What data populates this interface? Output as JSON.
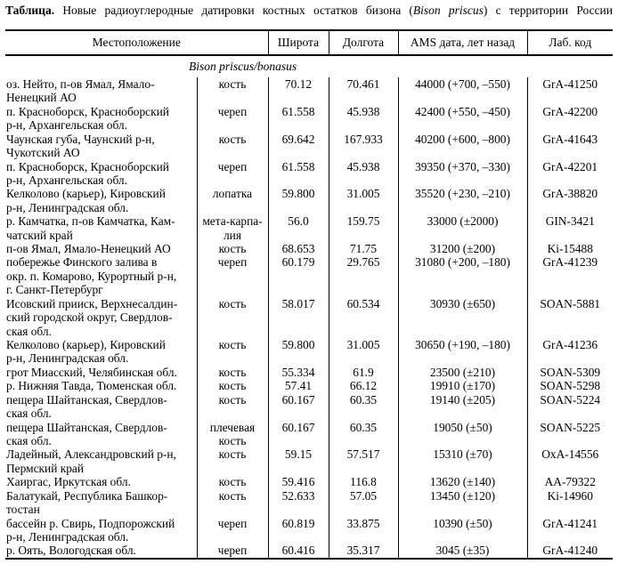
{
  "title": {
    "label": "Таблица.",
    "text_before_species": "Новые радиоуглеродные датировки костных остатков бизона (",
    "species": "Bison priscus",
    "text_after_species": ") с территории России"
  },
  "table": {
    "headers": {
      "location": "Местоположение",
      "latitude": "Широта",
      "longitude": "Долгота",
      "ams_date": "AMS дата, лет назад",
      "lab_code": "Лаб. код"
    },
    "section": "Bison priscus/bonasus",
    "rows": [
      {
        "location": "оз. Нейто, п-ов Ямал, Ямало-\nНенецкий АО",
        "bone": "кость",
        "lat": "70.12",
        "lon": "70.461",
        "ams": "44000 (+700, –550)",
        "lab": "GrA-41250"
      },
      {
        "location": "п. Красноборск, Красноборский\nр-н, Архангельская обл.",
        "bone": "череп",
        "lat": "61.558",
        "lon": "45.938",
        "ams": "42400 (+550, –450)",
        "lab": "GrA-42200"
      },
      {
        "location": "Чаунская губа, Чаунский р-н,\nЧукотский АО",
        "bone": "кость",
        "lat": "69.642",
        "lon": "167.933",
        "ams": "40200 (+600, –800)",
        "lab": "GrA-41643"
      },
      {
        "location": "п. Красноборск, Красноборский\nр-н, Архангельская обл.",
        "bone": "череп",
        "lat": "61.558",
        "lon": "45.938",
        "ams": "39350 (+370, –330)",
        "lab": "GrA-42201"
      },
      {
        "location": "Келколово (карьер), Кировский\nр-н, Ленинградская обл.",
        "bone": "лопатка",
        "lat": "59.800",
        "lon": "31.005",
        "ams": "35520 (+230, –210)",
        "lab": "GrA-38820"
      },
      {
        "location": "р. Камчатка, п-ов Камчатка, Кам-\nчатский край",
        "bone": "мета-карпа-\nлия",
        "lat": "56.0",
        "lon": "159.75",
        "ams": "33000 (±2000)",
        "lab": "GIN-3421"
      },
      {
        "location": "п-ов Ямал, Ямало-Ненецкий АО",
        "bone": "кость",
        "lat": "68.653",
        "lon": "71.75",
        "ams": "31200 (±200)",
        "lab": "Ki-15488"
      },
      {
        "location": "побережье Финского залива в\nокр. п. Комарово, Курортный р-н,\nг. Санкт-Петербург",
        "bone": "череп",
        "lat": "60.179",
        "lon": "29.765",
        "ams": "31080 (+200, –180)",
        "lab": "GrA-41239"
      },
      {
        "location": "Исовский прииск, Верхнесалдин-\nский городской округ, Свердлов-\nская обл.",
        "bone": "кость",
        "lat": "58.017",
        "lon": "60.534",
        "ams": "30930 (±650)",
        "lab": "SOAN-5881"
      },
      {
        "location": "Келколово (карьер), Кировский\nр-н, Ленинградская обл.",
        "bone": "кость",
        "lat": "59.800",
        "lon": "31.005",
        "ams": "30650 (+190, –180)",
        "lab": "GrA-41236"
      },
      {
        "location": "грот Миасский, Челябинская обл.",
        "bone": "кость",
        "lat": "55.334",
        "lon": "61.9",
        "ams": "23500 (±210)",
        "lab": "SOAN-5309"
      },
      {
        "location": "р. Нижняя Тавда, Тюменская обл.",
        "bone": "кость",
        "lat": "57.41",
        "lon": "66.12",
        "ams": "19910 (±170)",
        "lab": "SOAN-5298"
      },
      {
        "location": "пещера Шайтанская, Свердлов-\nская обл.",
        "bone": "кость",
        "lat": "60.167",
        "lon": "60.35",
        "ams": "19140 (±205)",
        "lab": "SOAN-5224"
      },
      {
        "location": "пещера Шайтанская, Свердлов-\nская обл.",
        "bone": "плечевая\nкость",
        "lat": "60.167",
        "lon": "60.35",
        "ams": "19050 (±50)",
        "lab": "SOAN-5225"
      },
      {
        "location": "Ладейный, Александровский р-н,\nПермский край",
        "bone": "кость",
        "lat": "59.15",
        "lon": "57.517",
        "ams": "15310 (±70)",
        "lab": "OxA-14556"
      },
      {
        "location": "Хаиргас, Иркутская обл.",
        "bone": "кость",
        "lat": "59.416",
        "lon": "116.8",
        "ams": "13620 (±140)",
        "lab": "AA-79322"
      },
      {
        "location": "Балатукай, Республика Башкор-\nтостан",
        "bone": "кость",
        "lat": "52.633",
        "lon": "57.05",
        "ams": "13450 (±120)",
        "lab": "Ki-14960"
      },
      {
        "location": "бассейн р. Свирь, Подпорожский\nр-н, Ленинградская обл.",
        "bone": "череп",
        "lat": "60.819",
        "lon": "33.875",
        "ams": "10390 (±50)",
        "lab": "GrA-41241"
      },
      {
        "location": "р. Оять, Вологодская обл.",
        "bone": "череп",
        "lat": "60.416",
        "lon": "35.317",
        "ams": "3045 (±35)",
        "lab": "GrA-41240"
      }
    ]
  },
  "colors": {
    "background": "#ffffff",
    "text": "#000000",
    "border": "#000000"
  }
}
